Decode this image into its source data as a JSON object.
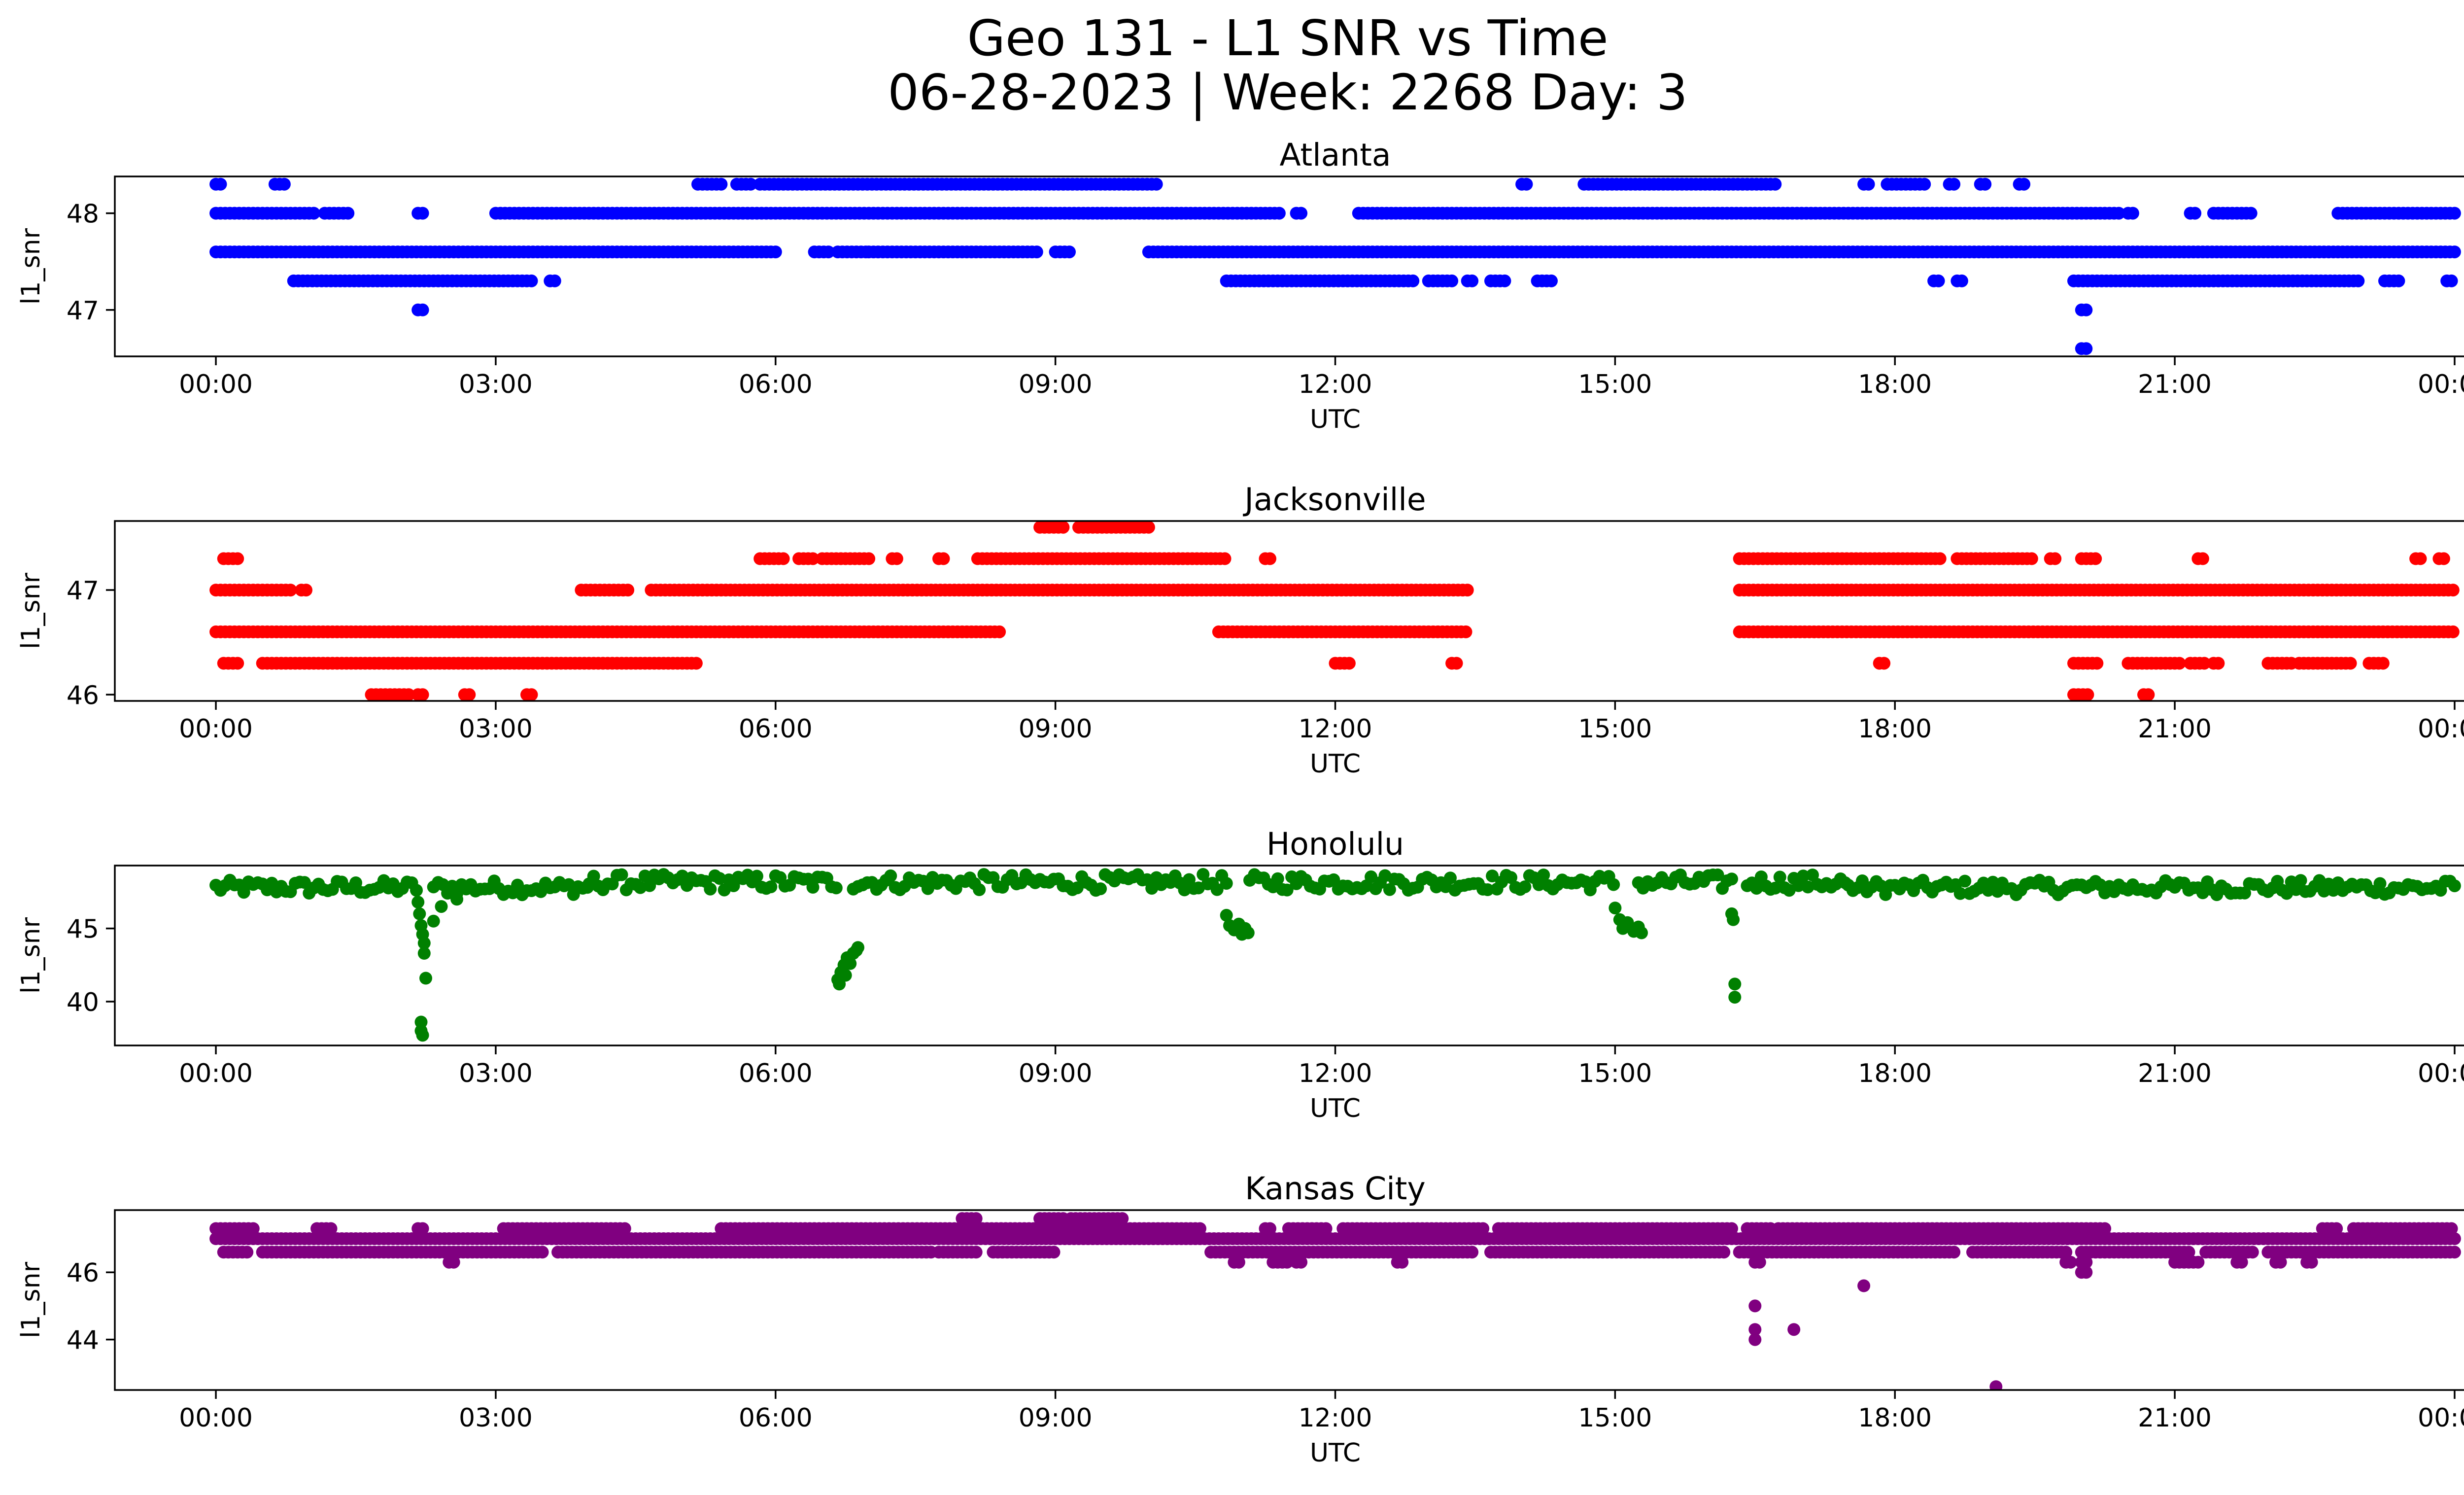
{
  "figure": {
    "title_line1": "Geo 131 - L1 SNR vs Time",
    "title_line2": "06-28-2023 | Week: 2268 Day: 3"
  },
  "chart_data": [
    {
      "type": "scatter",
      "title": "Atlanta",
      "xlabel": "UTC",
      "ylabel": "l1_snr",
      "color": "#0000ff",
      "xlim": [
        "2023-06-27T22:55",
        "2023-06-29T01:05"
      ],
      "ylim": [
        46.52,
        48.38
      ],
      "x_ticks": [
        "00:00",
        "03:00",
        "06:00",
        "09:00",
        "12:00",
        "15:00",
        "18:00",
        "21:00",
        "00:00"
      ],
      "y_ticks": [
        47,
        48
      ],
      "series": [
        {
          "level": 48.3,
          "segments": [
            [
              "00:00",
              "00:05"
            ],
            [
              "00:38",
              "00:45"
            ],
            [
              "05:10",
              "05:25"
            ],
            [
              "05:35",
              "05:45"
            ],
            [
              "05:50",
              "10:05"
            ],
            [
              "14:00",
              "14:05"
            ],
            [
              "14:40",
              "16:45"
            ],
            [
              "17:40",
              "17:45"
            ],
            [
              "17:55",
              "18:20"
            ],
            [
              "18:35",
              "18:40"
            ],
            [
              "18:55",
              "19:00"
            ],
            [
              "19:20",
              "19:25"
            ]
          ]
        },
        {
          "level": 48.0,
          "segments": [
            [
              "00:00",
              "01:05"
            ],
            [
              "01:10",
              "01:25"
            ],
            [
              "02:10",
              "02:15"
            ],
            [
              "03:00",
              "11:25"
            ],
            [
              "11:35",
              "11:40"
            ],
            [
              "12:15",
              "20:25"
            ],
            [
              "20:30",
              "20:35"
            ],
            [
              "21:10",
              "21:15"
            ],
            [
              "21:25",
              "21:50"
            ],
            [
              "22:45",
              "24:00"
            ]
          ]
        },
        {
          "level": 47.6,
          "segments": [
            [
              "00:00",
              "06:00"
            ],
            [
              "06:25",
              "06:35"
            ],
            [
              "06:40",
              "07:00"
            ],
            [
              "07:00",
              "08:50"
            ],
            [
              "09:00",
              "09:10"
            ],
            [
              "10:00",
              "24:00"
            ]
          ]
        },
        {
          "level": 47.3,
          "segments": [
            [
              "00:50",
              "03:25"
            ],
            [
              "03:35",
              "03:40"
            ],
            [
              "10:50",
              "12:50"
            ],
            [
              "13:00",
              "13:15"
            ],
            [
              "13:25",
              "13:30"
            ],
            [
              "13:40",
              "13:50"
            ],
            [
              "14:10",
              "14:20"
            ],
            [
              "18:25",
              "18:30"
            ],
            [
              "18:40",
              "18:45"
            ],
            [
              "19:55",
              "23:00"
            ],
            [
              "23:15",
              "23:25"
            ],
            [
              "23:55",
              "24:00"
            ]
          ]
        },
        {
          "level": 47.0,
          "segments": [
            [
              "02:10",
              "02:15"
            ],
            [
              "20:00",
              "20:05"
            ]
          ]
        },
        {
          "level": 46.6,
          "segments": [
            [
              "20:00",
              "20:05"
            ]
          ]
        }
      ]
    },
    {
      "type": "scatter",
      "title": "Jacksonville",
      "xlabel": "UTC",
      "ylabel": "l1_snr",
      "color": "#ff0000",
      "xlim": [
        "2023-06-27T22:55",
        "2023-06-29T01:05"
      ],
      "ylim": [
        45.94,
        47.66
      ],
      "x_ticks": [
        "00:00",
        "03:00",
        "06:00",
        "09:00",
        "12:00",
        "15:00",
        "18:00",
        "21:00",
        "00:00"
      ],
      "y_ticks": [
        46,
        47
      ],
      "series": [
        {
          "level": 47.6,
          "segments": [
            [
              "08:50",
              "09:05"
            ],
            [
              "09:15",
              "10:00"
            ]
          ]
        },
        {
          "level": 47.3,
          "segments": [
            [
              "00:05",
              "00:15"
            ],
            [
              "05:50",
              "06:05"
            ],
            [
              "06:15",
              "06:25"
            ],
            [
              "06:30",
              "07:00"
            ],
            [
              "07:15",
              "07:20"
            ],
            [
              "07:45",
              "07:50"
            ],
            [
              "08:10",
              "10:50"
            ],
            [
              "11:15",
              "11:20"
            ],
            [
              "16:20",
              "18:30"
            ],
            [
              "18:40",
              "19:30"
            ],
            [
              "19:40",
              "19:45"
            ],
            [
              "20:00",
              "20:10"
            ],
            [
              "21:15",
              "21:20"
            ],
            [
              "23:35",
              "23:40"
            ],
            [
              "23:50",
              "23:55"
            ]
          ]
        },
        {
          "level": 47.0,
          "segments": [
            [
              "00:00",
              "00:50"
            ],
            [
              "00:55",
              "01:00"
            ],
            [
              "03:55",
              "04:25"
            ],
            [
              "04:40",
              "13:25"
            ],
            [
              "16:20",
              "24:00"
            ]
          ]
        },
        {
          "level": 46.6,
          "segments": [
            [
              "00:00",
              "08:25"
            ],
            [
              "10:45",
              "13:25"
            ],
            [
              "16:20",
              "24:00"
            ]
          ]
        },
        {
          "level": 46.3,
          "segments": [
            [
              "00:05",
              "00:15"
            ],
            [
              "00:30",
              "05:10"
            ],
            [
              "12:00",
              "12:10"
            ],
            [
              "13:15",
              "13:20"
            ],
            [
              "17:50",
              "17:55"
            ],
            [
              "19:55",
              "20:10"
            ],
            [
              "20:30",
              "21:05"
            ],
            [
              "21:10",
              "21:20"
            ],
            [
              "21:25",
              "21:30"
            ],
            [
              "22:00",
              "22:15"
            ],
            [
              "22:20",
              "22:55"
            ],
            [
              "23:05",
              "23:15"
            ]
          ]
        },
        {
          "level": 46.0,
          "segments": [
            [
              "01:40",
              "02:05"
            ],
            [
              "02:10",
              "02:15"
            ],
            [
              "02:40",
              "02:45"
            ],
            [
              "03:20",
              "03:25"
            ],
            [
              "19:55",
              "20:05"
            ],
            [
              "20:40",
              "20:45"
            ]
          ]
        }
      ]
    },
    {
      "type": "scatter",
      "title": "Honolulu",
      "xlabel": "UTC",
      "ylabel": "l1_snr",
      "color": "#008000",
      "xlim": [
        "2023-06-27T22:55",
        "2023-06-29T01:05"
      ],
      "ylim": [
        37.0,
        49.3
      ],
      "x_ticks": [
        "00:00",
        "03:00",
        "06:00",
        "09:00",
        "12:00",
        "15:00",
        "18:00",
        "21:00",
        "00:00"
      ],
      "y_ticks": [
        40,
        45
      ],
      "series": [
        {
          "band": [
            47.3,
            48.3
          ],
          "segments": [
            [
              "00:00",
              "02:10"
            ],
            [
              "02:20",
              "04:00"
            ],
            [
              "17:30",
              "24:00"
            ]
          ]
        },
        {
          "band": [
            47.6,
            48.7
          ],
          "segments": [
            [
              "04:00",
              "06:40"
            ],
            [
              "06:50",
              "10:50"
            ],
            [
              "11:05",
              "15:00"
            ],
            [
              "15:15",
              "16:15"
            ],
            [
              "16:25",
              "17:30"
            ]
          ]
        },
        {
          "dip_points": [
            [
              "02:10",
              46.8
            ],
            [
              "02:11",
              46.0
            ],
            [
              "02:12",
              45.2
            ],
            [
              "02:13",
              44.6
            ],
            [
              "02:14",
              44.0
            ],
            [
              "02:14",
              43.3
            ],
            [
              "02:15",
              41.6
            ],
            [
              "02:12",
              38.6
            ],
            [
              "02:12",
              38.0
            ],
            [
              "02:13",
              37.7
            ],
            [
              "02:20",
              45.5
            ],
            [
              "02:25",
              46.5
            ],
            [
              "02:35",
              47.0
            ],
            [
              "06:40",
              41.5
            ],
            [
              "06:42",
              42.0
            ],
            [
              "06:44",
              42.5
            ],
            [
              "06:46",
              43.0
            ],
            [
              "06:48",
              42.6
            ],
            [
              "06:50",
              43.3
            ],
            [
              "06:52",
              43.5
            ],
            [
              "06:41",
              41.2
            ],
            [
              "06:45",
              41.8
            ],
            [
              "06:53",
              43.7
            ],
            [
              "10:50",
              45.9
            ],
            [
              "10:52",
              45.2
            ],
            [
              "10:55",
              44.9
            ],
            [
              "10:58",
              45.3
            ],
            [
              "11:00",
              44.6
            ],
            [
              "11:02",
              45.0
            ],
            [
              "11:04",
              44.7
            ],
            [
              "15:00",
              46.4
            ],
            [
              "15:03",
              45.6
            ],
            [
              "15:05",
              45.0
            ],
            [
              "15:08",
              45.4
            ],
            [
              "15:12",
              44.8
            ],
            [
              "15:15",
              45.1
            ],
            [
              "15:17",
              44.7
            ],
            [
              "16:15",
              46.0
            ],
            [
              "16:16",
              45.6
            ],
            [
              "16:17",
              41.2
            ],
            [
              "16:17",
              40.3
            ]
          ]
        }
      ]
    },
    {
      "type": "scatter",
      "title": "Kansas City",
      "xlabel": "UTC",
      "ylabel": "l1_snr",
      "color": "#800080",
      "xlim": [
        "2023-06-27T22:55",
        "2023-06-29T01:05"
      ],
      "ylim": [
        42.5,
        47.85
      ],
      "x_ticks": [
        "00:00",
        "03:00",
        "06:00",
        "09:00",
        "12:00",
        "15:00",
        "18:00",
        "21:00",
        "00:00"
      ],
      "y_ticks": [
        44,
        46
      ],
      "series": [
        {
          "level": 47.6,
          "segments": [
            [
              "08:00",
              "08:10"
            ],
            [
              "08:50",
              "09:05"
            ],
            [
              "09:10",
              "09:45"
            ]
          ]
        },
        {
          "level": 47.3,
          "segments": [
            [
              "00:00",
              "00:25"
            ],
            [
              "01:05",
              "01:15"
            ],
            [
              "02:10",
              "02:15"
            ],
            [
              "03:05",
              "04:25"
            ],
            [
              "05:25",
              "09:00"
            ],
            [
              "09:00",
              "10:35"
            ],
            [
              "11:15",
              "11:20"
            ],
            [
              "11:30",
              "11:55"
            ],
            [
              "12:05",
              "13:35"
            ],
            [
              "13:45",
              "16:15"
            ],
            [
              "16:25",
              "16:40"
            ],
            [
              "16:45",
              "20:15"
            ],
            [
              "22:35",
              "22:45"
            ],
            [
              "22:55",
              "24:00"
            ]
          ]
        },
        {
          "level": 47.0,
          "segments": [
            [
              "00:00",
              "24:00"
            ]
          ]
        },
        {
          "level": 46.6,
          "segments": [
            [
              "00:05",
              "00:20"
            ],
            [
              "00:30",
              "03:30"
            ],
            [
              "03:40",
              "07:40"
            ],
            [
              "07:45",
              "08:10"
            ],
            [
              "08:20",
              "09:00"
            ],
            [
              "10:40",
              "13:30"
            ],
            [
              "13:40",
              "16:10"
            ],
            [
              "16:20",
              "18:40"
            ],
            [
              "18:50",
              "19:50"
            ],
            [
              "20:00",
              "21:10"
            ],
            [
              "21:20",
              "21:50"
            ],
            [
              "22:00",
              "24:00"
            ]
          ]
        },
        {
          "level": 46.3,
          "segments": [
            [
              "02:30",
              "02:35"
            ],
            [
              "10:55",
              "11:00"
            ],
            [
              "11:20",
              "11:30"
            ],
            [
              "11:35",
              "11:40"
            ],
            [
              "12:40",
              "12:45"
            ],
            [
              "16:30",
              "16:35"
            ],
            [
              "19:50",
              "19:55"
            ],
            [
              "20:00",
              "20:05"
            ],
            [
              "21:00",
              "21:15"
            ],
            [
              "21:40",
              "21:45"
            ],
            [
              "22:05",
              "22:10"
            ],
            [
              "22:25",
              "22:30"
            ]
          ]
        },
        {
          "level": 46.0,
          "segments": [
            [
              "20:00",
              "20:05"
            ]
          ]
        },
        {
          "points": [
            [
              "16:30",
              45.0
            ],
            [
              "16:30",
              44.3
            ],
            [
              "16:30",
              44.0
            ],
            [
              "16:55",
              44.3
            ],
            [
              "17:40",
              45.6
            ],
            [
              "19:05",
              42.6
            ]
          ]
        }
      ]
    }
  ]
}
